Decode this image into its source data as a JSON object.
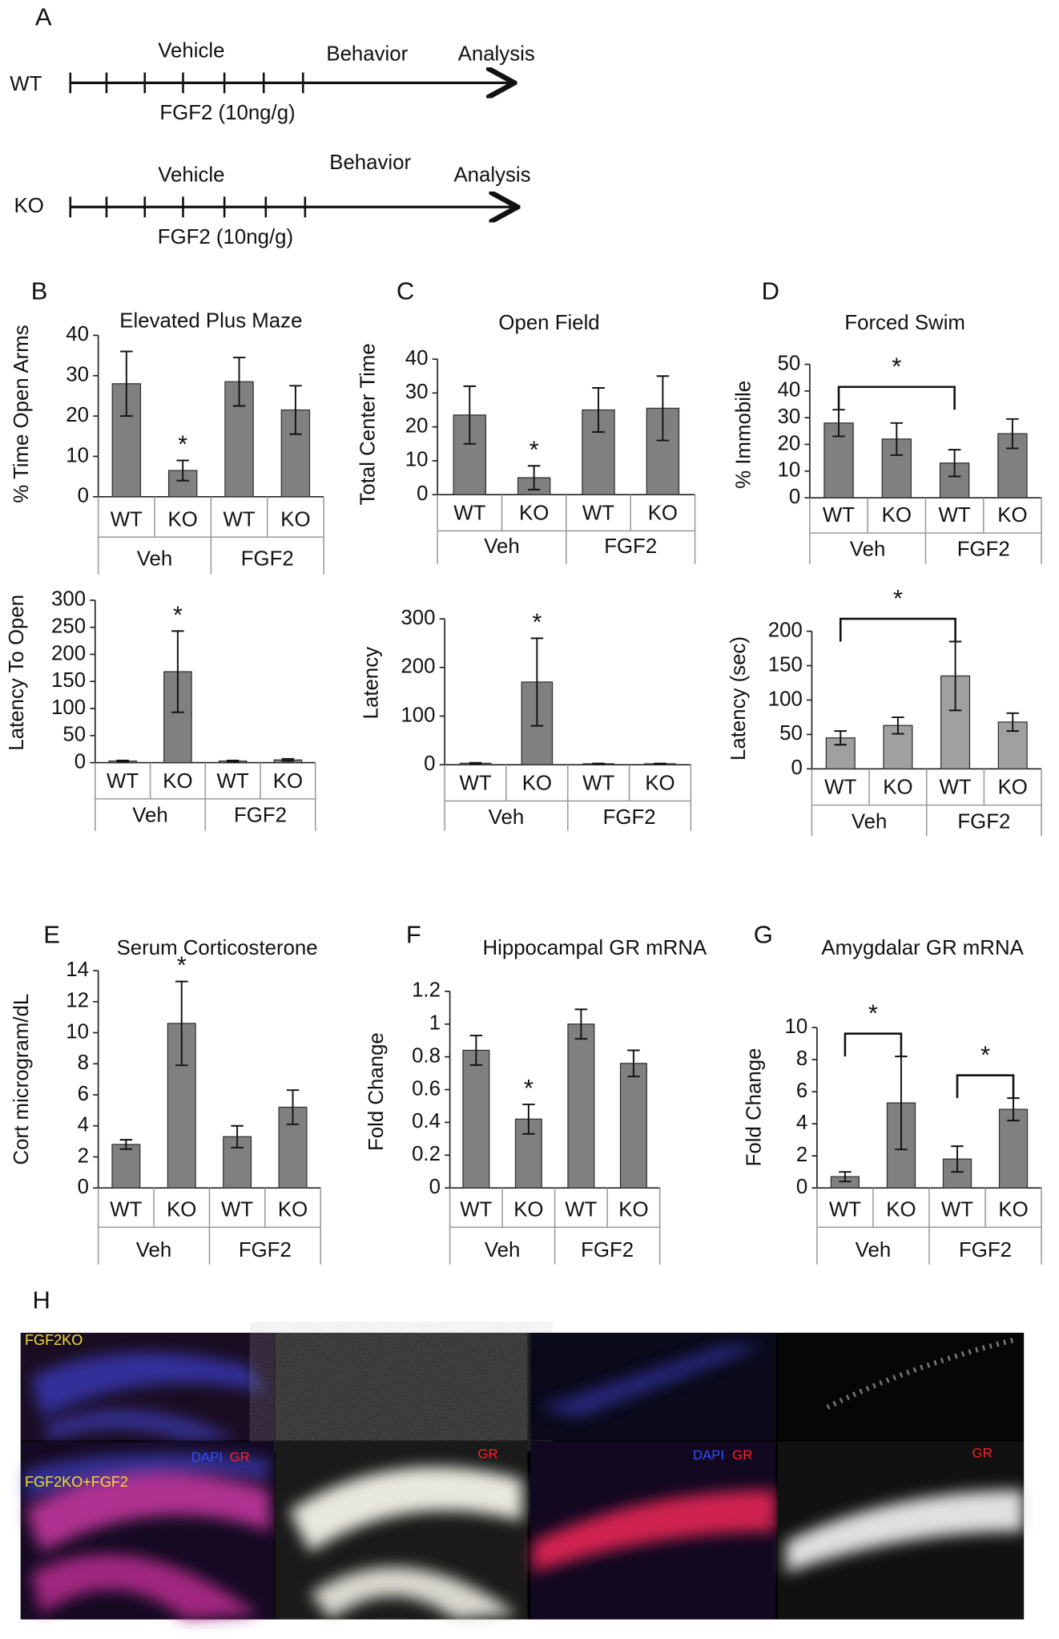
{
  "panel_a": {
    "label": "A",
    "rows": [
      {
        "group": "WT",
        "vehicle": "Vehicle",
        "treatment": "FGF2 (10ng/g)",
        "behavior": "Behavior",
        "analysis": "Analysis"
      },
      {
        "group": "KO",
        "vehicle": "Vehicle",
        "treatment": "FGF2 (10ng/g)",
        "behavior": "Behavior",
        "analysis": "Analysis"
      }
    ]
  },
  "chart_data": [
    {
      "type": "bar",
      "panel": "B",
      "title": "Elevated Plus Maze",
      "ylabel": "% Time Open Arms",
      "categories": [
        "WT",
        "KO",
        "WT",
        "KO"
      ],
      "groups": [
        "Veh",
        "FGF2"
      ],
      "values": [
        28,
        6.5,
        28.5,
        21.5
      ],
      "errors": [
        8,
        2.5,
        6,
        6
      ],
      "annotations": [
        null,
        "*",
        null,
        null
      ],
      "color": "#808080",
      "ylim": [
        0,
        40
      ],
      "yticks": [
        0,
        10,
        20,
        30,
        40
      ]
    },
    {
      "type": "bar",
      "ylabel": "Latency To Open",
      "categories": [
        "WT",
        "KO",
        "WT",
        "KO"
      ],
      "groups": [
        "Veh",
        "FGF2"
      ],
      "values": [
        3,
        168,
        3,
        5
      ],
      "errors": [
        1,
        75,
        1,
        2
      ],
      "annotations": [
        null,
        "*",
        null,
        null
      ],
      "color": "#808080",
      "ylim": [
        0,
        300
      ],
      "yticks": [
        0,
        50,
        100,
        150,
        200,
        250,
        300
      ]
    },
    {
      "type": "bar",
      "panel": "C",
      "title": "Open Field",
      "ylabel": "Total Center Time",
      "categories": [
        "WT",
        "KO",
        "WT",
        "KO"
      ],
      "groups": [
        "Veh",
        "FGF2"
      ],
      "values": [
        23.5,
        5,
        25,
        25.5
      ],
      "errors": [
        8.5,
        3.5,
        6.5,
        9.5
      ],
      "annotations": [
        null,
        "*",
        null,
        null
      ],
      "color": "#808080",
      "ylim": [
        0,
        40
      ],
      "yticks": [
        0,
        10,
        20,
        30,
        40
      ]
    },
    {
      "type": "bar",
      "ylabel": "Latency",
      "categories": [
        "WT",
        "KO",
        "WT",
        "KO"
      ],
      "groups": [
        "Veh",
        "FGF2"
      ],
      "values": [
        3,
        170,
        2,
        2
      ],
      "errors": [
        1,
        90,
        0.5,
        0.5
      ],
      "annotations": [
        null,
        "*",
        null,
        null
      ],
      "color": "#808080",
      "ylim": [
        0,
        300
      ],
      "yticks": [
        0,
        100,
        200,
        300
      ]
    },
    {
      "type": "bar",
      "panel": "D",
      "title": "Forced Swim",
      "ylabel": "% Immobile",
      "categories": [
        "WT",
        "KO",
        "WT",
        "KO"
      ],
      "groups": [
        "Veh",
        "FGF2"
      ],
      "values": [
        28,
        22,
        13,
        24
      ],
      "errors": [
        5,
        6,
        5,
        5.5
      ],
      "brackets": [
        {
          "between": [
            0,
            2
          ],
          "label": "*"
        }
      ],
      "color": "#808080",
      "ylim": [
        0,
        50
      ],
      "yticks": [
        0,
        10,
        20,
        30,
        40,
        50
      ]
    },
    {
      "type": "bar",
      "ylabel": "Latency (sec)",
      "categories": [
        "WT",
        "KO",
        "WT",
        "KO"
      ],
      "groups": [
        "Veh",
        "FGF2"
      ],
      "values": [
        45,
        63,
        135,
        68
      ],
      "errors": [
        10,
        12,
        50,
        13
      ],
      "brackets": [
        {
          "between": [
            0,
            2
          ],
          "label": "*"
        }
      ],
      "color": "#a0a0a0",
      "ylim": [
        0,
        200
      ],
      "yticks": [
        0,
        50,
        100,
        150,
        200
      ]
    },
    {
      "type": "bar",
      "panel": "E",
      "title": "Serum Corticosterone",
      "ylabel": "Cort microgram/dL",
      "categories": [
        "WT",
        "KO",
        "WT",
        "KO"
      ],
      "groups": [
        "Veh",
        "FGF2"
      ],
      "values": [
        2.8,
        10.6,
        3.3,
        5.2
      ],
      "errors": [
        0.3,
        2.7,
        0.7,
        1.1
      ],
      "annotations": [
        null,
        "*",
        null,
        null
      ],
      "color": "#808080",
      "ylim": [
        0,
        14
      ],
      "yticks": [
        0,
        2,
        4,
        6,
        8,
        10,
        12,
        14
      ]
    },
    {
      "type": "bar",
      "panel": "F",
      "title": "Hippocampal GR mRNA",
      "ylabel": "Fold Change",
      "categories": [
        "WT",
        "KO",
        "WT",
        "KO"
      ],
      "groups": [
        "Veh",
        "FGF2"
      ],
      "values": [
        0.84,
        0.42,
        1.0,
        0.76
      ],
      "errors": [
        0.09,
        0.09,
        0.09,
        0.08
      ],
      "annotations": [
        null,
        "*",
        null,
        null
      ],
      "color": "#808080",
      "ylim": [
        0,
        1.2
      ],
      "yticks": [
        0,
        0.2,
        0.4,
        0.6,
        0.8,
        1,
        1.2
      ]
    },
    {
      "type": "bar",
      "panel": "G",
      "title": "Amygdalar GR mRNA",
      "ylabel": "Fold Change",
      "categories": [
        "WT",
        "KO",
        "WT",
        "KO"
      ],
      "groups": [
        "Veh",
        "FGF2"
      ],
      "values": [
        0.7,
        5.3,
        1.8,
        4.9
      ],
      "errors": [
        0.3,
        2.9,
        0.8,
        0.7
      ],
      "brackets": [
        {
          "between": [
            0,
            1
          ],
          "label": "*"
        },
        {
          "between": [
            2,
            3
          ],
          "label": "*"
        }
      ],
      "color": "#808080",
      "ylim": [
        0,
        10
      ],
      "yticks": [
        0,
        2,
        4,
        6,
        8,
        10
      ]
    }
  ],
  "panel_h": {
    "label": "H",
    "rows": [
      "FGF2KO",
      "FGF2KO+FGF2"
    ],
    "stain_labels": [
      "DAPI",
      "GR",
      "GR",
      "DAPI",
      "GR",
      "GR"
    ]
  }
}
